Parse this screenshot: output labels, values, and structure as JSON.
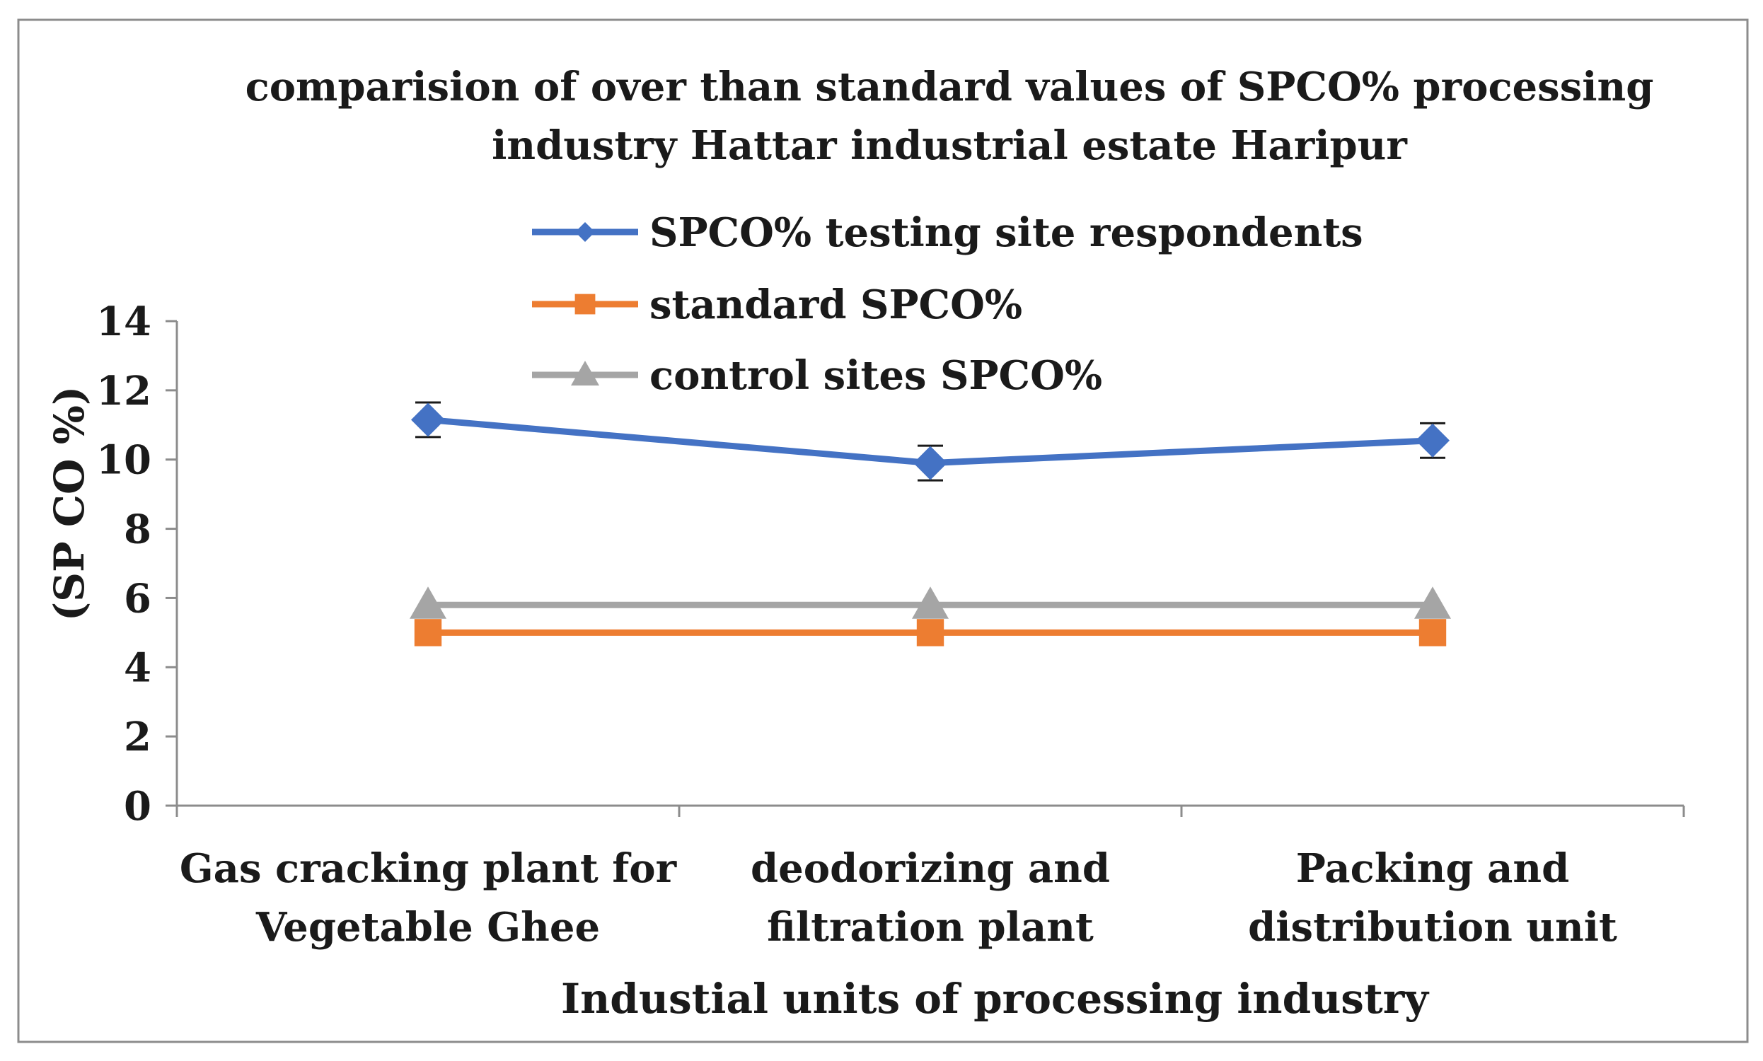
{
  "chart_data": {
    "type": "line",
    "title_lines": [
      "comparision of over than standard values of  SPCO% processing",
      "industry Hattar industrial estate Haripur"
    ],
    "ylabel": "(SP CO %)",
    "xlabel": "Industial units of processing industry",
    "ylim": [
      0,
      14
    ],
    "yticks": [
      "0",
      "2",
      "4",
      "6",
      "8",
      "10",
      "12",
      "14"
    ],
    "categories": [
      [
        "Gas cracking plant for",
        "Vegetable Ghee"
      ],
      [
        "deodorizing and",
        "filtration plant"
      ],
      [
        "Packing and",
        "distribution unit"
      ]
    ],
    "series": [
      {
        "name": "SPCO% testing site respondents",
        "marker": "diamond",
        "color": "#4472c4",
        "values": [
          11.15,
          9.9,
          10.55
        ],
        "error": [
          0.5,
          0.5,
          0.5
        ]
      },
      {
        "name": "standard SPCO%",
        "marker": "square",
        "color": "#ed7d31",
        "values": [
          5.0,
          5.0,
          5.0
        ]
      },
      {
        "name": "control sites SPCO%",
        "marker": "triangle",
        "color": "#a5a5a5",
        "values": [
          5.8,
          5.8,
          5.8
        ]
      }
    ],
    "legend_position": "top-center",
    "grid": false
  }
}
